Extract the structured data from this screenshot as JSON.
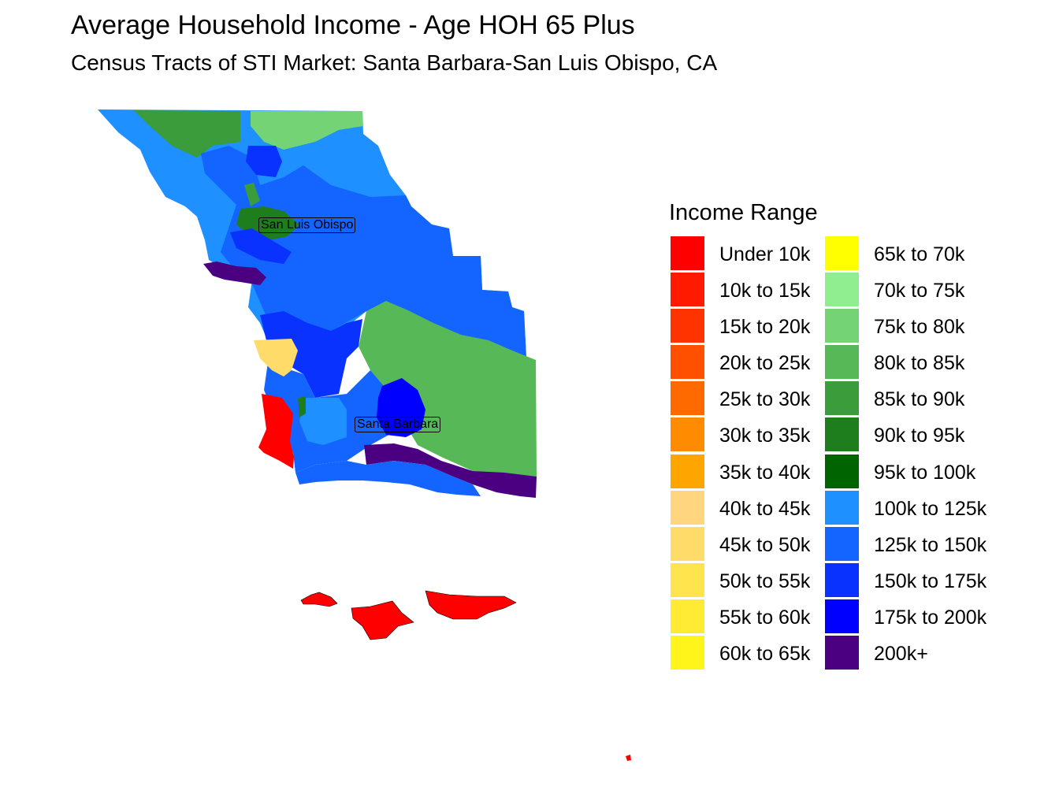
{
  "title": "Average Household Income - Age HOH 65 Plus",
  "subtitle": "Census Tracts of STI Market: Santa Barbara-San Luis Obispo, CA",
  "cities": [
    {
      "name": "San Luis Obispo"
    },
    {
      "name": "Santa Barbara"
    }
  ],
  "legend": {
    "title": "Income Range",
    "items": [
      {
        "label": "Under 10k",
        "color": "#ff0000"
      },
      {
        "label": "10k to 15k",
        "color": "#ff1a00"
      },
      {
        "label": "15k to 20k",
        "color": "#ff3300"
      },
      {
        "label": "20k to 25k",
        "color": "#ff5000"
      },
      {
        "label": "25k to 30k",
        "color": "#ff6a00"
      },
      {
        "label": "30k to 35k",
        "color": "#ff8c00"
      },
      {
        "label": "35k to 40k",
        "color": "#ffa500"
      },
      {
        "label": "40k to 45k",
        "color": "#ffd580"
      },
      {
        "label": "45k to 50k",
        "color": "#ffdb6a"
      },
      {
        "label": "50k to 55k",
        "color": "#ffe44d"
      },
      {
        "label": "55k to 60k",
        "color": "#ffeb33"
      },
      {
        "label": "60k to 65k",
        "color": "#fff51a"
      },
      {
        "label": "65k to 70k",
        "color": "#ffff00"
      },
      {
        "label": "70k to 75k",
        "color": "#90ee90"
      },
      {
        "label": "75k to 80k",
        "color": "#74d374"
      },
      {
        "label": "80k to 85k",
        "color": "#57b857"
      },
      {
        "label": "85k to 90k",
        "color": "#3a9c3a"
      },
      {
        "label": "90k to 95k",
        "color": "#1e7e1e"
      },
      {
        "label": "95k to 100k",
        "color": "#006400"
      },
      {
        "label": "100k to 125k",
        "color": "#1e90ff"
      },
      {
        "label": "125k to 150k",
        "color": "#1464ff"
      },
      {
        "label": "150k to 175k",
        "color": "#0a32ff"
      },
      {
        "label": "175k to 200k",
        "color": "#0000ff"
      },
      {
        "label": "200k+",
        "color": "#4b0082"
      }
    ]
  }
}
